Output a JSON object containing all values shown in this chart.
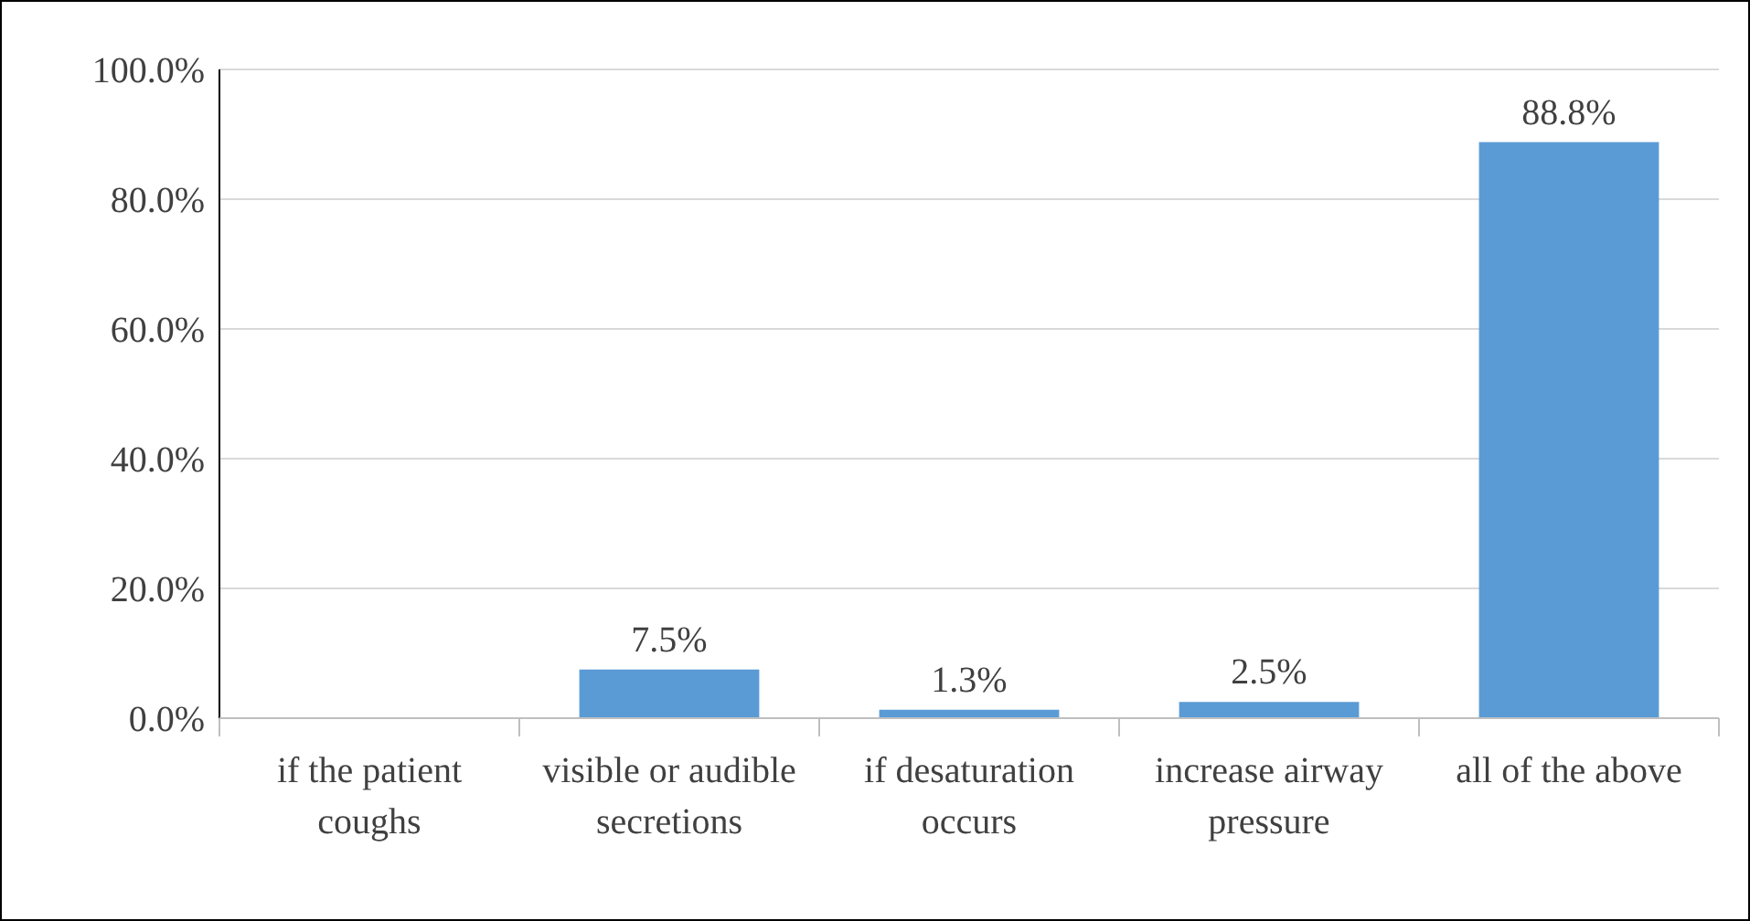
{
  "chart_data": {
    "type": "bar",
    "categories": [
      "if the patient coughs",
      "visible or audible secretions",
      "if desaturation occurs",
      "increase airway pressure",
      "all of the above"
    ],
    "values": [
      0,
      7.5,
      1.3,
      2.5,
      88.8
    ],
    "value_labels": [
      null,
      "7.5%",
      "1.3%",
      "2.5%",
      "88.8%"
    ],
    "color": "#5b9bd5",
    "ylim": [
      0,
      100
    ],
    "yticks": [
      {
        "value": 0,
        "label": "0.0%"
      },
      {
        "value": 20,
        "label": "20.0%"
      },
      {
        "value": 40,
        "label": "40.0%"
      },
      {
        "value": 60,
        "label": "60.0%"
      },
      {
        "value": 80,
        "label": "80.0%"
      },
      {
        "value": 100,
        "label": "100.0%"
      }
    ],
    "grid": "y"
  }
}
